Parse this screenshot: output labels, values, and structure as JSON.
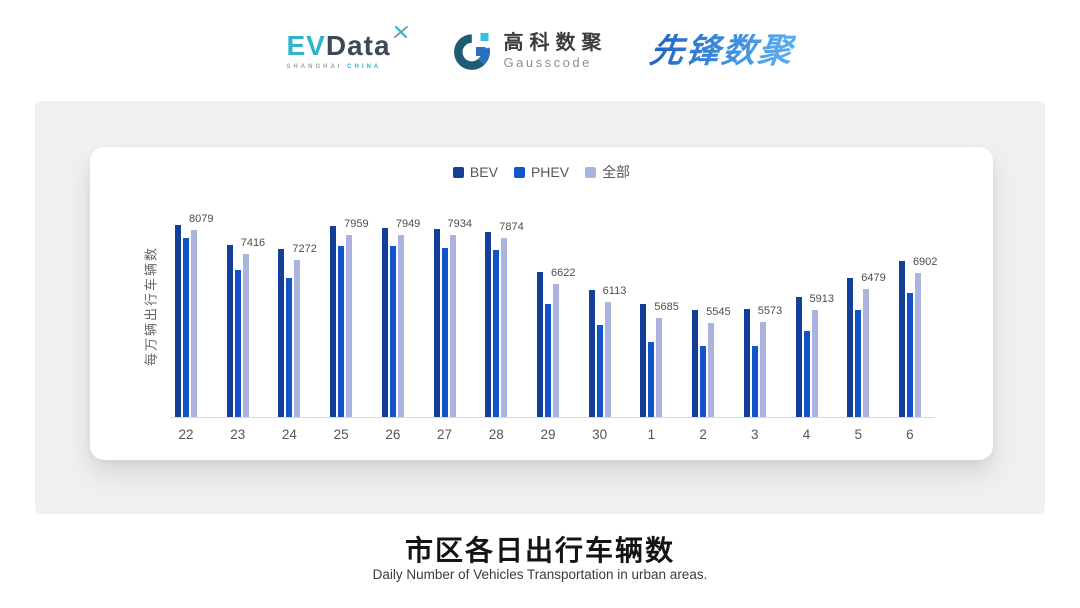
{
  "header": {
    "evdata": {
      "ev": "EV",
      "data": "Data",
      "sub_left": "SHANGHAI",
      "sub_right": "CHINA"
    },
    "gausscode": {
      "cn": "高科数聚",
      "en": "Gausscode"
    },
    "pioneer": {
      "text": "先锋数聚"
    }
  },
  "colors": {
    "bev": "#133E9A",
    "phev": "#1354CB",
    "all": "#AAB4DE",
    "evdata_cyan": "#2FB4CB",
    "evdata_dark": "#3D4959",
    "gauss_teal": "#1D5C72",
    "gauss_blue": "#2A6FC0",
    "gauss_cyan": "#35C2DA",
    "panel_gray": "#F0F0F0"
  },
  "chart_data": {
    "type": "bar",
    "title": "市区各日出行车辆数",
    "subtitle": "Daily Number of Vehicles Transportation in urban areas.",
    "ylabel": "每万辆出行车辆数",
    "xlabel": "",
    "categories": [
      "22",
      "23",
      "24",
      "25",
      "26",
      "27",
      "28",
      "29",
      "30",
      "1",
      "2",
      "3",
      "4",
      "5",
      "6"
    ],
    "series": [
      {
        "name": "BEV",
        "color": "#133E9A",
        "values": [
          8220,
          7680,
          7560,
          8180,
          8140,
          8120,
          8040,
          6930,
          6450,
          6070,
          5910,
          5940,
          6250,
          6790,
          7230
        ]
      },
      {
        "name": "PHEV",
        "color": "#1354CB",
        "values": [
          7870,
          6990,
          6770,
          7650,
          7640,
          7590,
          7540,
          6070,
          5510,
          5050,
          4920,
          4920,
          5340,
          5920,
          6370
        ]
      },
      {
        "name": "全部",
        "color": "#AAB4DE",
        "labeled": true,
        "values": [
          8079,
          7416,
          7272,
          7959,
          7949,
          7934,
          7874,
          6622,
          6113,
          5685,
          5545,
          5573,
          5913,
          6479,
          6902
        ]
      }
    ],
    "data_labels": [
      8079,
      7416,
      7272,
      7959,
      7949,
      7934,
      7874,
      6622,
      6113,
      5685,
      5545,
      5573,
      5913,
      6479,
      6902
    ],
    "ylim": [
      3000,
      9060
    ],
    "legend_position": "top",
    "grid": false
  },
  "footer": {
    "title": "市区各日出行车辆数",
    "subtitle": "Daily Number of Vehicles Transportation in urban areas."
  }
}
